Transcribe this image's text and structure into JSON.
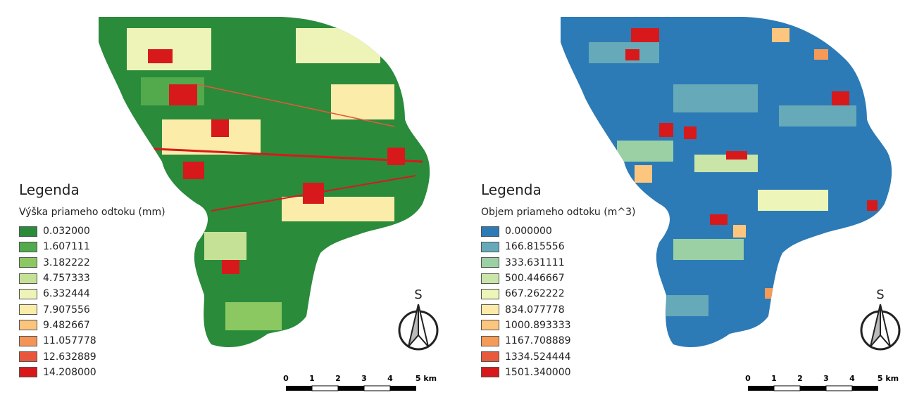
{
  "panels": [
    {
      "legend_title": "Legenda",
      "legend_subtitle": "Výška priameho odtoku (mm)",
      "classes": [
        {
          "label": "0.032000",
          "color": "#2a8b3a"
        },
        {
          "label": "1.607111",
          "color": "#52aa4d"
        },
        {
          "label": "3.182222",
          "color": "#8cc862"
        },
        {
          "label": "4.757333",
          "color": "#c5e195"
        },
        {
          "label": "6.332444",
          "color": "#eef4b8"
        },
        {
          "label": "7.907556",
          "color": "#fbeca9"
        },
        {
          "label": "9.482667",
          "color": "#fbc57e"
        },
        {
          "label": "11.057778",
          "color": "#f39556"
        },
        {
          "label": "12.632889",
          "color": "#e8573c"
        },
        {
          "label": "14.208000",
          "color": "#d7191c"
        }
      ],
      "north_label": "S",
      "scale_ticks": [
        "0",
        "1",
        "2",
        "3",
        "4",
        "5 km"
      ]
    },
    {
      "legend_title": "Legenda",
      "legend_subtitle": "Objem priameho odtoku (m^3)",
      "classes": [
        {
          "label": "0.000000",
          "color": "#2c7bb6"
        },
        {
          "label": "166.815556",
          "color": "#66a9b8"
        },
        {
          "label": "333.631111",
          "color": "#9bd0a5"
        },
        {
          "label": "500.446667",
          "color": "#c9e5a8"
        },
        {
          "label": "667.262222",
          "color": "#eef5b8"
        },
        {
          "label": "834.077778",
          "color": "#fdeaa8"
        },
        {
          "label": "1000.893333",
          "color": "#fdc67e"
        },
        {
          "label": "1167.708889",
          "color": "#f59a57"
        },
        {
          "label": "1334.524444",
          "color": "#e75a3c"
        },
        {
          "label": "1501.340000",
          "color": "#d7191c"
        }
      ],
      "north_label": "S",
      "scale_ticks": [
        "0",
        "1",
        "2",
        "3",
        "4",
        "5 km"
      ]
    }
  ]
}
